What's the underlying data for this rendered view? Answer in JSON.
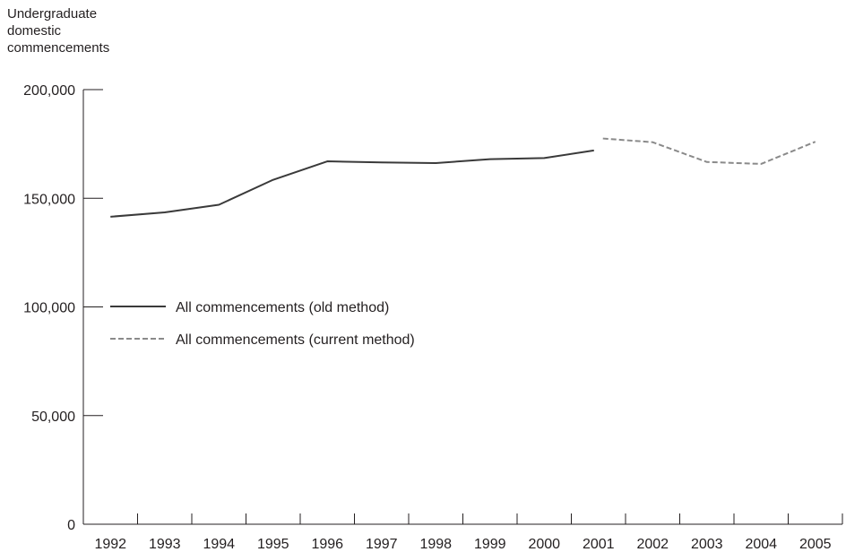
{
  "chart_data": {
    "type": "line",
    "ylabel_lines": [
      "Undergraduate",
      "domestic",
      "commencements"
    ],
    "xlabel": "",
    "ylim": [
      0,
      200000
    ],
    "yticks": [
      0,
      50000,
      100000,
      150000,
      200000
    ],
    "ytick_labels": [
      "0",
      "50,000",
      "100,000",
      "150,000",
      "200,000"
    ],
    "categories": [
      "1992",
      "1993",
      "1994",
      "1995",
      "1996",
      "1997",
      "1998",
      "1999",
      "2000",
      "2001",
      "2002",
      "2003",
      "2004",
      "2005"
    ],
    "legend_position": "center-left",
    "series": [
      {
        "name": "All commencements (old method)",
        "style": "solid",
        "color": "#3a3a3a",
        "x": [
          "1992",
          "1993",
          "1994",
          "1995",
          "1996",
          "1997",
          "1998",
          "1999",
          "2000",
          "2001"
        ],
        "values": [
          141500,
          143500,
          147000,
          158500,
          167000,
          166500,
          166200,
          168000,
          168500,
          172000
        ]
      },
      {
        "name": "All commencements (current method)",
        "style": "dashed",
        "color": "#8a8a8a",
        "x": [
          "2001",
          "2002",
          "2003",
          "2004",
          "2005"
        ],
        "values": [
          177500,
          175800,
          166700,
          165800,
          176000
        ]
      }
    ]
  }
}
